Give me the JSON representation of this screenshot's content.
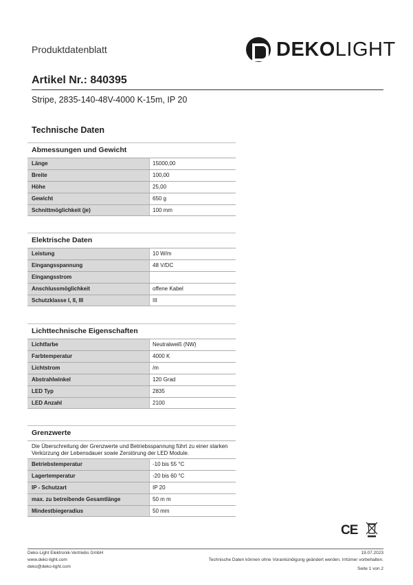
{
  "header": {
    "doc_type": "Produktdatenblatt",
    "logo_text_bold": "DEKO",
    "logo_text_light": "LIGHT"
  },
  "article": {
    "number": "Artikel Nr.: 840395",
    "description": "Stripe, 2835-140-48V-4000 K-15m, IP 20"
  },
  "section_title": "Technische Daten",
  "sections": [
    {
      "title": "Abmessungen und Gewicht",
      "rows": [
        [
          "Länge",
          "15000,00"
        ],
        [
          "Breite",
          "100,00"
        ],
        [
          "Höhe",
          "25,00"
        ],
        [
          "Gewicht",
          "650 g"
        ],
        [
          "Schnittmöglichkeit (je)",
          "100 mm"
        ]
      ]
    },
    {
      "title": "Elektrische Daten",
      "rows": [
        [
          "Leistung",
          "10 W/m"
        ],
        [
          "Eingangsspannung",
          "48 V/DC"
        ],
        [
          "Eingangsstrom",
          ""
        ],
        [
          "Anschlussmöglichkeit",
          "offene Kabel"
        ],
        [
          "Schutzklasse I, II, III",
          "III"
        ]
      ]
    },
    {
      "title": "Lichttechnische Eigenschaften",
      "rows": [
        [
          "Lichtfarbe",
          "Neutralweiß (NW)"
        ],
        [
          "Farbtemperatur",
          "4000 K"
        ],
        [
          "Lichtstrom",
          "/m"
        ],
        [
          "Abstrahlwinkel",
          "120 Grad"
        ],
        [
          "LED Typ",
          "2835"
        ],
        [
          "LED Anzahl",
          "2100"
        ]
      ]
    },
    {
      "title": "Grenzwerte",
      "note": "Die Überschreitung der Grenzwerte und Betriebsspannung führt zu einer starken Verkürzung der Lebensdauer sowie Zerstörung der LED Module.",
      "rows": [
        [
          "Betriebstemperatur",
          "-10 bis 55 °C"
        ],
        [
          "Lagertemperatur",
          "-20 bis 60 °C"
        ],
        [
          "IP - Schutzart",
          "IP 20"
        ],
        [
          "max. zu betreibende Gesamtlänge",
          "50 m m"
        ],
        [
          "Mindestbiegeradius",
          "50 mm"
        ]
      ]
    }
  ],
  "marks": {
    "ce": "CE"
  },
  "footer": {
    "company": "Deko-Light Elektronik-Vertriebs GmbH",
    "website": "www.deko-light.com",
    "email": "deko@deko-light.com",
    "date": "19.07.2023",
    "disclaimer": "Technische Daten können ohne Vorankündigung geändert werden. Irrtümer vorbehalten.",
    "page": "Seite 1 von 2"
  }
}
